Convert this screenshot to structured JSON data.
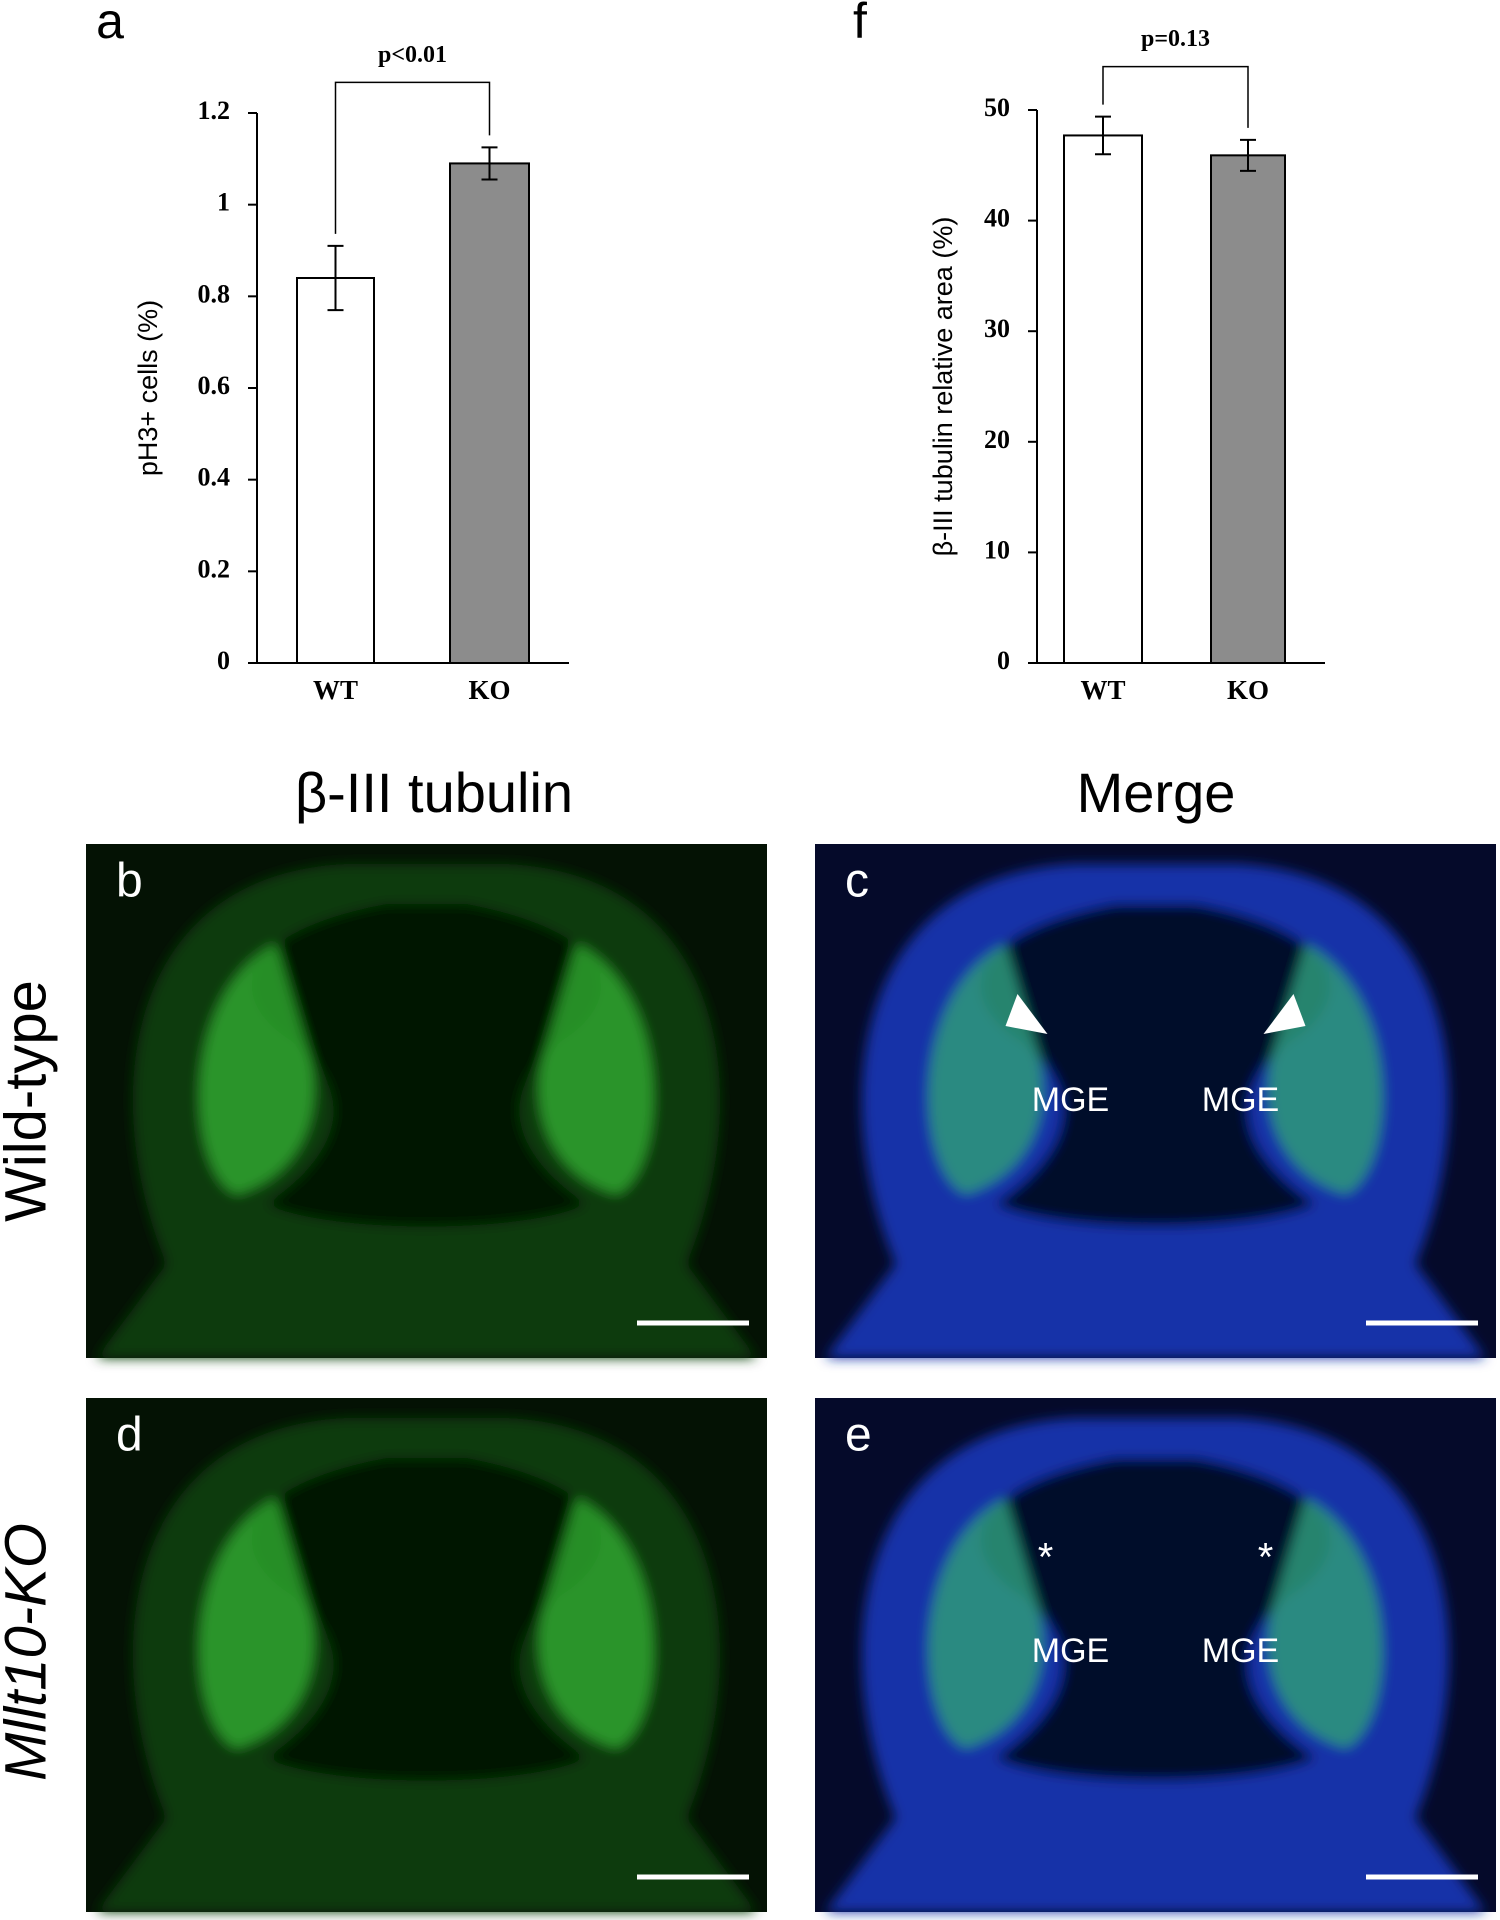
{
  "chart_data": [
    {
      "type": "bar",
      "panel": "a",
      "ylabel": "pH3+ cells (%)",
      "annotation": "p<0.01",
      "categories": [
        "WT",
        "KO"
      ],
      "values": [
        0.84,
        1.09
      ],
      "errors": [
        0.07,
        0.035
      ],
      "colors": [
        "#ffffff",
        "#8c8c8c"
      ],
      "ylim": [
        0,
        1.2
      ],
      "yticks": [
        0,
        0.2,
        0.4,
        0.6,
        0.8,
        1,
        1.2
      ]
    },
    {
      "type": "bar",
      "panel": "f",
      "ylabel": "β-III tubulin relative area (%)",
      "annotation": "p=0.13",
      "categories": [
        "WT",
        "KO"
      ],
      "values": [
        47.7,
        45.9
      ],
      "errors": [
        1.7,
        1.4
      ],
      "colors": [
        "#ffffff",
        "#8c8c8c"
      ],
      "ylim": [
        0,
        50
      ],
      "yticks": [
        0,
        10,
        20,
        30,
        40,
        50
      ]
    }
  ],
  "figure": {
    "column_headers": [
      "β-III tubulin",
      "Merge"
    ],
    "row_labels": [
      "Wild-type",
      "Mllt10-KO"
    ],
    "panels": [
      "b",
      "c",
      "d",
      "e"
    ],
    "region_label": "MGE",
    "asterisk": "*"
  }
}
